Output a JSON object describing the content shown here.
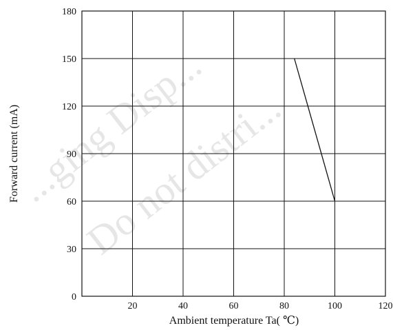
{
  "chart_data": {
    "type": "line",
    "xlabel": "Ambient temperature Ta( ℃)",
    "ylabel": "Forward current (mA)",
    "xlim": [
      0,
      120
    ],
    "ylim": [
      0,
      180
    ],
    "x_ticks": [
      20,
      40,
      60,
      80,
      100,
      120
    ],
    "y_ticks": [
      0,
      30,
      60,
      90,
      120,
      150,
      180
    ],
    "grid": true,
    "series": [
      {
        "x": [
          84,
          100
        ],
        "y": [
          150,
          60
        ]
      }
    ]
  },
  "watermark": {
    "lines": [
      "...ging Disp...",
      "Do not distri..."
    ]
  }
}
